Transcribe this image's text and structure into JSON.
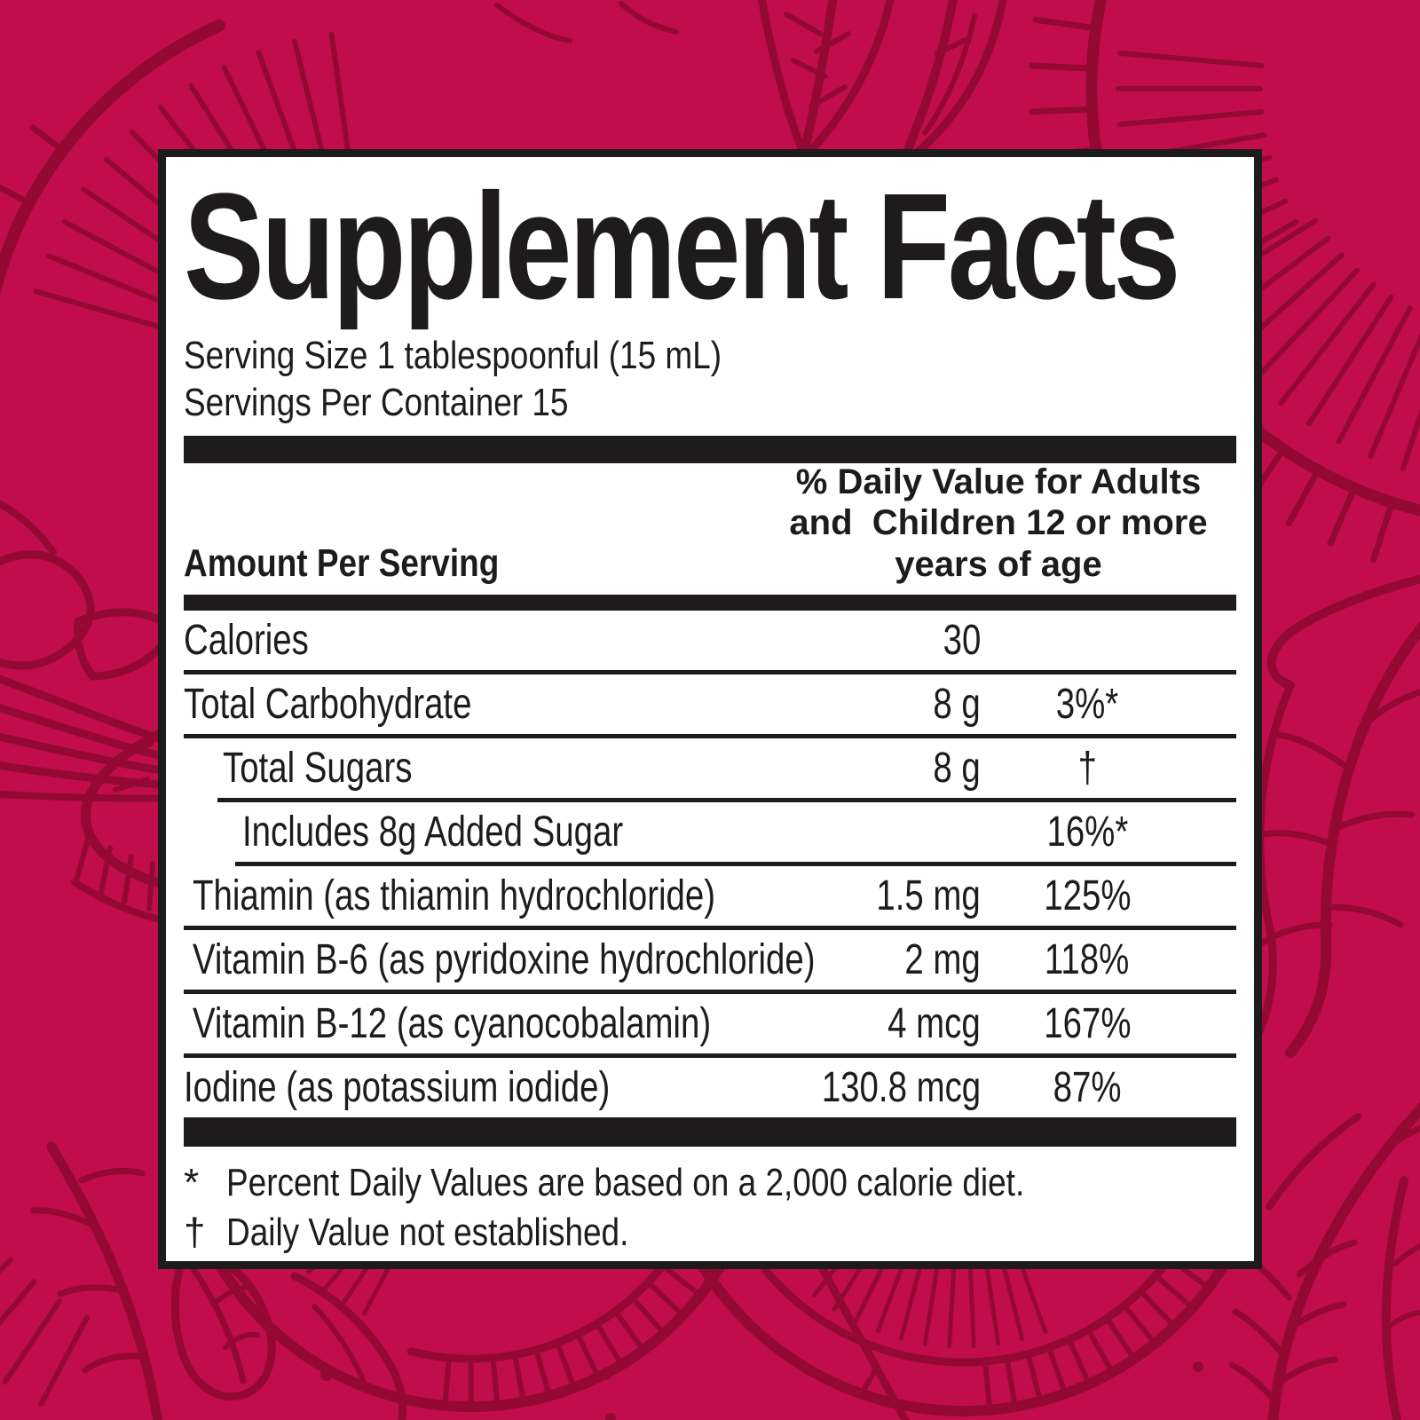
{
  "colors": {
    "background": "#C10D4C",
    "pattern_line": "#930934",
    "panel_background": "#FFFFFF",
    "ink": "#1E1B1C"
  },
  "label": {
    "title": "Supplement Facts",
    "serving_size": "Serving Size 1 tablespoonful (15 mL)",
    "servings_per_container": "Servings Per Container 15",
    "amount_per_serving_header": "Amount Per Serving",
    "daily_value_header": "% Daily Value for Adults\nand  Children 12 or more\nyears of age",
    "rows": [
      {
        "label": "Calories",
        "amount": "30",
        "daily_value": ""
      },
      {
        "label": "Total Carbohydrate",
        "amount": "8 g",
        "daily_value": "3%*"
      },
      {
        "label": "Total Sugars",
        "amount": "8 g",
        "daily_value": "†"
      },
      {
        "label": "Includes 8g Added Sugar",
        "amount": "",
        "daily_value": "16%*"
      },
      {
        "label": "Thiamin (as thiamin hydrochloride)",
        "amount": "1.5 mg",
        "daily_value": "125%"
      },
      {
        "label": "Vitamin B-6 (as pyridoxine hydrochloride)",
        "amount": "2 mg",
        "daily_value": "118%"
      },
      {
        "label": "Vitamin B-12 (as cyanocobalamin)",
        "amount": "4 mcg",
        "daily_value": "167%"
      },
      {
        "label": "Iodine (as potassium iodide)",
        "amount": "130.8 mcg",
        "daily_value": "87%"
      }
    ],
    "footnotes": [
      {
        "symbol": "*",
        "text": "Percent Daily Values are based on a 2,000 calorie diet."
      },
      {
        "symbol": "†",
        "text": "Daily Value not established."
      }
    ]
  }
}
